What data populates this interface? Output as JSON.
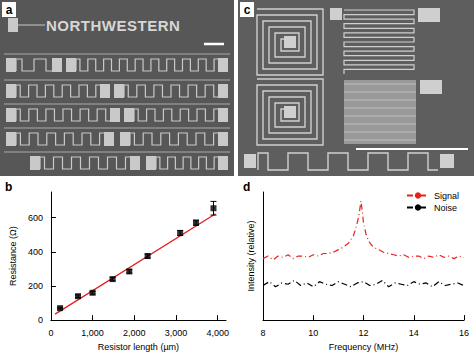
{
  "images": [
    {
      "label": "a",
      "text": "NORTHWESTERN"
    },
    {
      "label": "c"
    }
  ],
  "chart_data": [
    {
      "type": "scatter",
      "title": "b",
      "x_label": "Resistor length (µm)",
      "y_label": "Resistance (Ω)",
      "xlim": [
        0,
        4200
      ],
      "xticks": [
        0,
        {
          "value": 1000,
          "label": "1,000"
        },
        {
          "value": 2000,
          "label": "2,000"
        },
        {
          "value": 3000,
          "label": "3,000"
        },
        {
          "value": 4000,
          "label": "4,000"
        }
      ],
      "ylim": [
        0,
        750
      ],
      "yticks": [
        0,
        200,
        400,
        600
      ],
      "grid": false,
      "series": [
        {
          "type": "scatter",
          "marker": "square",
          "color": "#000000",
          "x": [
            220,
            650,
            1000,
            1480,
            1880,
            2320,
            3100,
            3480,
            3900
          ],
          "values": [
            70,
            140,
            160,
            240,
            285,
            375,
            510,
            570,
            655
          ],
          "errors": [
            5,
            8,
            8,
            10,
            10,
            12,
            15,
            15,
            40
          ]
        },
        {
          "type": "line",
          "color": "#e41a1c",
          "x": [
            100,
            3950
          ],
          "values": [
            35,
            622
          ]
        }
      ]
    },
    {
      "type": "line",
      "title": "d",
      "x_label": "Frequency (MHz)",
      "y_label": "Intensity (relative)",
      "xlim": [
        8,
        16
      ],
      "xticks": [
        8,
        10,
        12,
        14,
        16
      ],
      "ylim": [
        0,
        1
      ],
      "tick_labels": "x",
      "grid": false,
      "legend": "upper right",
      "series": [
        {
          "name": "Signal",
          "color": "#e8221b",
          "line_style": "dashdot",
          "x": [
            8,
            8.2,
            8.4,
            8.6,
            8.8,
            9,
            9.2,
            9.4,
            9.6,
            9.8,
            10,
            10.2,
            10.4,
            10.6,
            10.8,
            11,
            11.2,
            11.4,
            11.5,
            11.6,
            11.7,
            11.8,
            11.85,
            11.9,
            11.95,
            12,
            12.1,
            12.2,
            12.3,
            12.4,
            12.6,
            12.8,
            13,
            13.2,
            13.4,
            13.6,
            13.8,
            14,
            14.2,
            14.4,
            14.6,
            14.8,
            15,
            15.2,
            15.4,
            15.6,
            15.8,
            16
          ],
          "values": [
            0.48,
            0.5,
            0.47,
            0.5,
            0.49,
            0.51,
            0.48,
            0.5,
            0.5,
            0.49,
            0.51,
            0.5,
            0.52,
            0.52,
            0.53,
            0.55,
            0.57,
            0.6,
            0.63,
            0.66,
            0.72,
            0.8,
            0.86,
            0.93,
            0.85,
            0.76,
            0.67,
            0.62,
            0.59,
            0.57,
            0.55,
            0.53,
            0.52,
            0.51,
            0.5,
            0.51,
            0.49,
            0.5,
            0.5,
            0.48,
            0.5,
            0.49,
            0.51,
            0.49,
            0.5,
            0.48,
            0.5,
            0.49
          ]
        },
        {
          "name": "Noise",
          "color": "#000000",
          "line_style": "dashdot",
          "x": [
            8,
            8.25,
            8.5,
            8.75,
            9,
            9.25,
            9.5,
            9.75,
            10,
            10.25,
            10.5,
            10.75,
            11,
            11.25,
            11.5,
            11.75,
            12,
            12.25,
            12.5,
            12.75,
            13,
            13.25,
            13.5,
            13.75,
            14,
            14.25,
            14.5,
            14.75,
            15,
            15.25,
            15.5,
            15.75,
            16
          ],
          "values": [
            0.27,
            0.3,
            0.26,
            0.29,
            0.28,
            0.31,
            0.27,
            0.29,
            0.26,
            0.3,
            0.28,
            0.27,
            0.3,
            0.28,
            0.26,
            0.29,
            0.3,
            0.27,
            0.28,
            0.31,
            0.26,
            0.29,
            0.28,
            0.27,
            0.3,
            0.28,
            0.29,
            0.26,
            0.3,
            0.27,
            0.28,
            0.29,
            0.27
          ]
        }
      ]
    }
  ]
}
